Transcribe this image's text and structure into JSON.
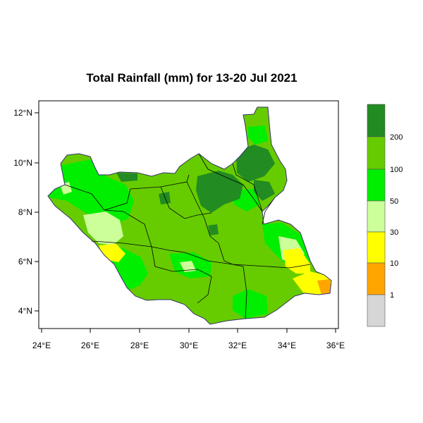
{
  "title": "Total Rainfall (mm) for 13-20 Jul 2021",
  "axes": {
    "lon_ticks": [
      "24°E",
      "26°E",
      "28°E",
      "30°E",
      "32°E",
      "34°E",
      "36°E"
    ],
    "lat_ticks": [
      "12°N",
      "10°N",
      "8°N",
      "6°N",
      "4°N"
    ],
    "lon_range": [
      24,
      36
    ],
    "lat_range": [
      3.3,
      12.5
    ]
  },
  "legend": {
    "labels": [
      "200",
      "100",
      "50",
      "30",
      "10",
      "1"
    ],
    "classes": [
      {
        "color": "#d6d6d6"
      },
      {
        "color": "#ffa500"
      },
      {
        "color": "#ffff00"
      },
      {
        "color": "#ccff99"
      },
      {
        "color": "#00ee00"
      },
      {
        "color": "#66cc00"
      },
      {
        "color": "#228b22"
      }
    ]
  },
  "colors": {
    "dark_green": "#228b22",
    "mid_green": "#66cc00",
    "bright_green": "#00ee00",
    "light_green": "#ccff99",
    "yellow": "#ffff00",
    "orange": "#ffa500",
    "grey": "#d6d6d6"
  }
}
